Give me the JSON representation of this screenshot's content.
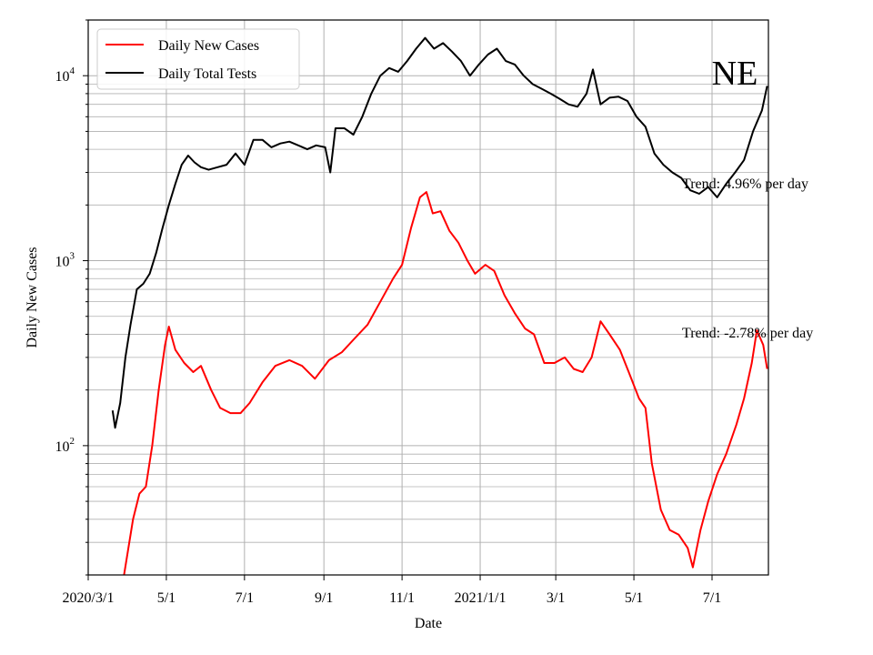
{
  "chart_data": {
    "type": "line",
    "state_label": "NE",
    "xlabel": "Date",
    "ylabel": "Daily New Cases",
    "y_scale": "log",
    "ylim": [
      20,
      20000
    ],
    "x_ticks": [
      "2020/3/1",
      "5/1",
      "7/1",
      "9/1",
      "11/1",
      "2021/1/1",
      "3/1",
      "5/1",
      "7/1"
    ],
    "y_ticks": [
      {
        "base": "10",
        "exp": "2",
        "value": 100
      },
      {
        "base": "10",
        "exp": "3",
        "value": 1000
      },
      {
        "base": "10",
        "exp": "4",
        "value": 10000
      }
    ],
    "grid": true,
    "legend_position": "top-left",
    "annotations": {
      "tests_trend": "Trend: 4.96% per day",
      "cases_trend": "Trend: -2.78% per day"
    },
    "series": [
      {
        "name": "Daily New Cases",
        "color": "#ff0000",
        "points": [
          [
            "2020-03-29",
            20
          ],
          [
            "2020-04-05",
            40
          ],
          [
            "2020-04-10",
            55
          ],
          [
            "2020-04-15",
            60
          ],
          [
            "2020-04-20",
            100
          ],
          [
            "2020-04-25",
            200
          ],
          [
            "2020-04-30",
            350
          ],
          [
            "2020-05-03",
            440
          ],
          [
            "2020-05-08",
            330
          ],
          [
            "2020-05-15",
            280
          ],
          [
            "2020-05-22",
            250
          ],
          [
            "2020-05-28",
            270
          ],
          [
            "2020-06-05",
            200
          ],
          [
            "2020-06-12",
            160
          ],
          [
            "2020-06-20",
            150
          ],
          [
            "2020-06-28",
            150
          ],
          [
            "2020-07-05",
            170
          ],
          [
            "2020-07-15",
            220
          ],
          [
            "2020-07-25",
            270
          ],
          [
            "2020-08-05",
            290
          ],
          [
            "2020-08-15",
            270
          ],
          [
            "2020-08-25",
            230
          ],
          [
            "2020-09-05",
            290
          ],
          [
            "2020-09-15",
            320
          ],
          [
            "2020-09-25",
            380
          ],
          [
            "2020-10-05",
            450
          ],
          [
            "2020-10-15",
            600
          ],
          [
            "2020-10-25",
            800
          ],
          [
            "2020-11-01",
            950
          ],
          [
            "2020-11-08",
            1500
          ],
          [
            "2020-11-15",
            2200
          ],
          [
            "2020-11-20",
            2350
          ],
          [
            "2020-11-25",
            1800
          ],
          [
            "2020-12-01",
            1850
          ],
          [
            "2020-12-08",
            1450
          ],
          [
            "2020-12-15",
            1250
          ],
          [
            "2020-12-22",
            1000
          ],
          [
            "2020-12-28",
            850
          ],
          [
            "2021-01-05",
            950
          ],
          [
            "2021-01-12",
            880
          ],
          [
            "2021-01-20",
            650
          ],
          [
            "2021-01-28",
            520
          ],
          [
            "2021-02-05",
            430
          ],
          [
            "2021-02-12",
            400
          ],
          [
            "2021-02-20",
            280
          ],
          [
            "2021-02-28",
            280
          ],
          [
            "2021-03-08",
            300
          ],
          [
            "2021-03-15",
            260
          ],
          [
            "2021-03-22",
            250
          ],
          [
            "2021-03-29",
            300
          ],
          [
            "2021-04-05",
            470
          ],
          [
            "2021-04-12",
            400
          ],
          [
            "2021-04-20",
            330
          ],
          [
            "2021-04-27",
            250
          ],
          [
            "2021-05-05",
            180
          ],
          [
            "2021-05-10",
            160
          ],
          [
            "2021-05-15",
            80
          ],
          [
            "2021-05-22",
            45
          ],
          [
            "2021-05-29",
            35
          ],
          [
            "2021-06-05",
            33
          ],
          [
            "2021-06-12",
            28
          ],
          [
            "2021-06-16",
            22
          ],
          [
            "2021-06-22",
            35
          ],
          [
            "2021-06-28",
            50
          ],
          [
            "2021-07-05",
            70
          ],
          [
            "2021-07-12",
            90
          ],
          [
            "2021-07-20",
            130
          ],
          [
            "2021-07-26",
            180
          ],
          [
            "2021-08-01",
            280
          ],
          [
            "2021-08-05",
            420
          ],
          [
            "2021-08-10",
            350
          ],
          [
            "2021-08-13",
            260
          ]
        ]
      },
      {
        "name": "Daily Total Tests",
        "color": "#000000",
        "points": [
          [
            "2020-03-20",
            155
          ],
          [
            "2020-03-22",
            125
          ],
          [
            "2020-03-26",
            170
          ],
          [
            "2020-03-30",
            300
          ],
          [
            "2020-04-03",
            450
          ],
          [
            "2020-04-08",
            700
          ],
          [
            "2020-04-13",
            750
          ],
          [
            "2020-04-18",
            850
          ],
          [
            "2020-04-23",
            1100
          ],
          [
            "2020-04-28",
            1500
          ],
          [
            "2020-05-03",
            2000
          ],
          [
            "2020-05-08",
            2600
          ],
          [
            "2020-05-13",
            3300
          ],
          [
            "2020-05-18",
            3700
          ],
          [
            "2020-05-23",
            3400
          ],
          [
            "2020-05-28",
            3200
          ],
          [
            "2020-06-03",
            3100
          ],
          [
            "2020-06-10",
            3200
          ],
          [
            "2020-06-17",
            3300
          ],
          [
            "2020-06-24",
            3800
          ],
          [
            "2020-07-01",
            3300
          ],
          [
            "2020-07-08",
            4500
          ],
          [
            "2020-07-15",
            4500
          ],
          [
            "2020-07-22",
            4100
          ],
          [
            "2020-07-29",
            4300
          ],
          [
            "2020-08-05",
            4400
          ],
          [
            "2020-08-12",
            4200
          ],
          [
            "2020-08-19",
            4000
          ],
          [
            "2020-08-26",
            4200
          ],
          [
            "2020-09-02",
            4100
          ],
          [
            "2020-09-06",
            3000
          ],
          [
            "2020-09-10",
            5200
          ],
          [
            "2020-09-17",
            5200
          ],
          [
            "2020-09-24",
            4800
          ],
          [
            "2020-10-01",
            6000
          ],
          [
            "2020-10-08",
            8000
          ],
          [
            "2020-10-15",
            10000
          ],
          [
            "2020-10-22",
            11000
          ],
          [
            "2020-10-29",
            10500
          ],
          [
            "2020-11-05",
            12000
          ],
          [
            "2020-11-12",
            14000
          ],
          [
            "2020-11-19",
            16000
          ],
          [
            "2020-11-26",
            14000
          ],
          [
            "2020-12-03",
            15000
          ],
          [
            "2020-12-10",
            13500
          ],
          [
            "2020-12-17",
            12000
          ],
          [
            "2020-12-24",
            10000
          ],
          [
            "2020-12-31",
            11500
          ],
          [
            "2021-01-07",
            13000
          ],
          [
            "2021-01-14",
            14000
          ],
          [
            "2021-01-21",
            12000
          ],
          [
            "2021-01-28",
            11500
          ],
          [
            "2021-02-04",
            10000
          ],
          [
            "2021-02-11",
            9000
          ],
          [
            "2021-02-18",
            8500
          ],
          [
            "2021-02-25",
            8000
          ],
          [
            "2021-03-04",
            7500
          ],
          [
            "2021-03-11",
            7000
          ],
          [
            "2021-03-18",
            6800
          ],
          [
            "2021-03-25",
            8000
          ],
          [
            "2021-03-30",
            10800
          ],
          [
            "2021-04-05",
            7000
          ],
          [
            "2021-04-12",
            7600
          ],
          [
            "2021-04-19",
            7700
          ],
          [
            "2021-04-26",
            7300
          ],
          [
            "2021-05-03",
            6000
          ],
          [
            "2021-05-10",
            5300
          ],
          [
            "2021-05-17",
            3800
          ],
          [
            "2021-05-24",
            3300
          ],
          [
            "2021-05-31",
            3000
          ],
          [
            "2021-06-07",
            2800
          ],
          [
            "2021-06-14",
            2400
          ],
          [
            "2021-06-21",
            2300
          ],
          [
            "2021-06-28",
            2500
          ],
          [
            "2021-07-05",
            2200
          ],
          [
            "2021-07-12",
            2600
          ],
          [
            "2021-07-19",
            3000
          ],
          [
            "2021-07-26",
            3500
          ],
          [
            "2021-08-02",
            5000
          ],
          [
            "2021-08-09",
            6500
          ],
          [
            "2021-08-13",
            8800
          ]
        ]
      }
    ]
  }
}
